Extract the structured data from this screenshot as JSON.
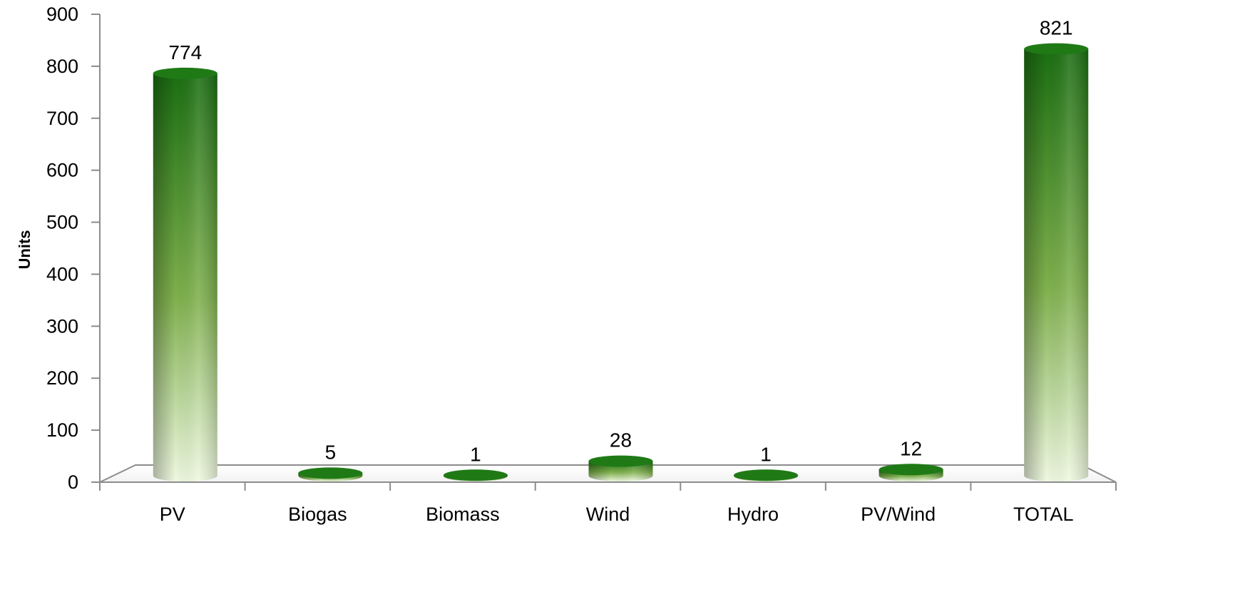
{
  "chart_data": {
    "type": "bar",
    "title": "",
    "xlabel": "",
    "ylabel": "Units",
    "ylim": [
      0,
      900
    ],
    "yticks": [
      "0",
      "100",
      "200",
      "300",
      "400",
      "500",
      "600",
      "700",
      "800",
      "900"
    ],
    "categories": [
      "PV",
      "Biogas",
      "Biomass",
      "Wind",
      "Hydro",
      "PV/Wind",
      "TOTAL"
    ],
    "values": [
      774,
      5,
      1,
      28,
      1,
      12,
      821
    ],
    "data_labels": [
      "774",
      "5",
      "1",
      "28",
      "1",
      "12",
      "821"
    ],
    "bar_shape": "cylinder",
    "grid": false,
    "legend": "none",
    "colors": {
      "bar_dark": "#1b6e12",
      "bar_mid": "#7fb04d",
      "bar_light": "#eef8e0",
      "bar_top": "#1f7a16",
      "axis": "#8c8c8c",
      "text": "#000000"
    }
  }
}
